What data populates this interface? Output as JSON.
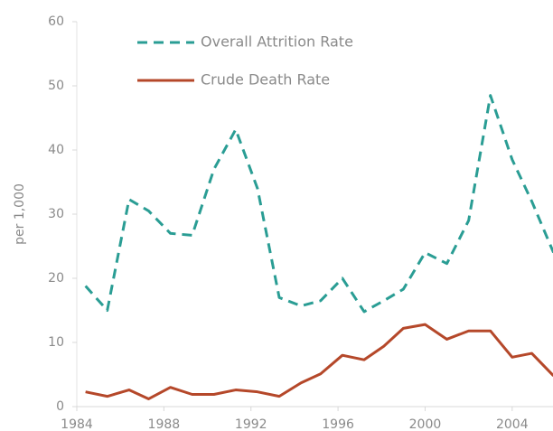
{
  "chart_data": {
    "type": "line",
    "y_label": "per 1,000",
    "x": [
      1984.4,
      1985.4,
      1986.4,
      1987.3,
      1988.3,
      1989.3,
      1990.3,
      1991.3,
      1992.3,
      1993.3,
      1994.3,
      1995.2,
      1996.2,
      1997.2,
      1998.1,
      1999.0,
      2000.0,
      2001.0,
      2002.0,
      2003.0,
      2004.0,
      2004.9,
      2005.9
    ],
    "series": [
      {
        "name": "Overall Attrition Rate",
        "color": "#2a9d94",
        "style": "dashed",
        "values": [
          18.8,
          15,
          32.3,
          30.5,
          27,
          26.7,
          37,
          43.2,
          34,
          17,
          15.7,
          16.5,
          20,
          14.8,
          16.5,
          18.3,
          24,
          22.3,
          29,
          48.5,
          38.5,
          32,
          24
        ]
      },
      {
        "name": "Crude Death Rate",
        "color": "#b5482a",
        "style": "solid",
        "values": [
          2.3,
          1.6,
          2.6,
          1.2,
          3,
          1.9,
          1.9,
          2.6,
          2.3,
          1.6,
          3.7,
          5.1,
          8,
          7.3,
          9.4,
          12.2,
          12.8,
          10.5,
          11.8,
          11.8,
          7.7,
          8.3,
          4.8
        ]
      }
    ],
    "xlim": [
      1984,
      2006
    ],
    "xticks": [
      1984,
      1988,
      1992,
      1996,
      2000,
      2004
    ],
    "ylim": [
      0,
      60
    ],
    "yticks": [
      0,
      10,
      20,
      30,
      40,
      50,
      60
    ],
    "legend": "upper-left"
  }
}
